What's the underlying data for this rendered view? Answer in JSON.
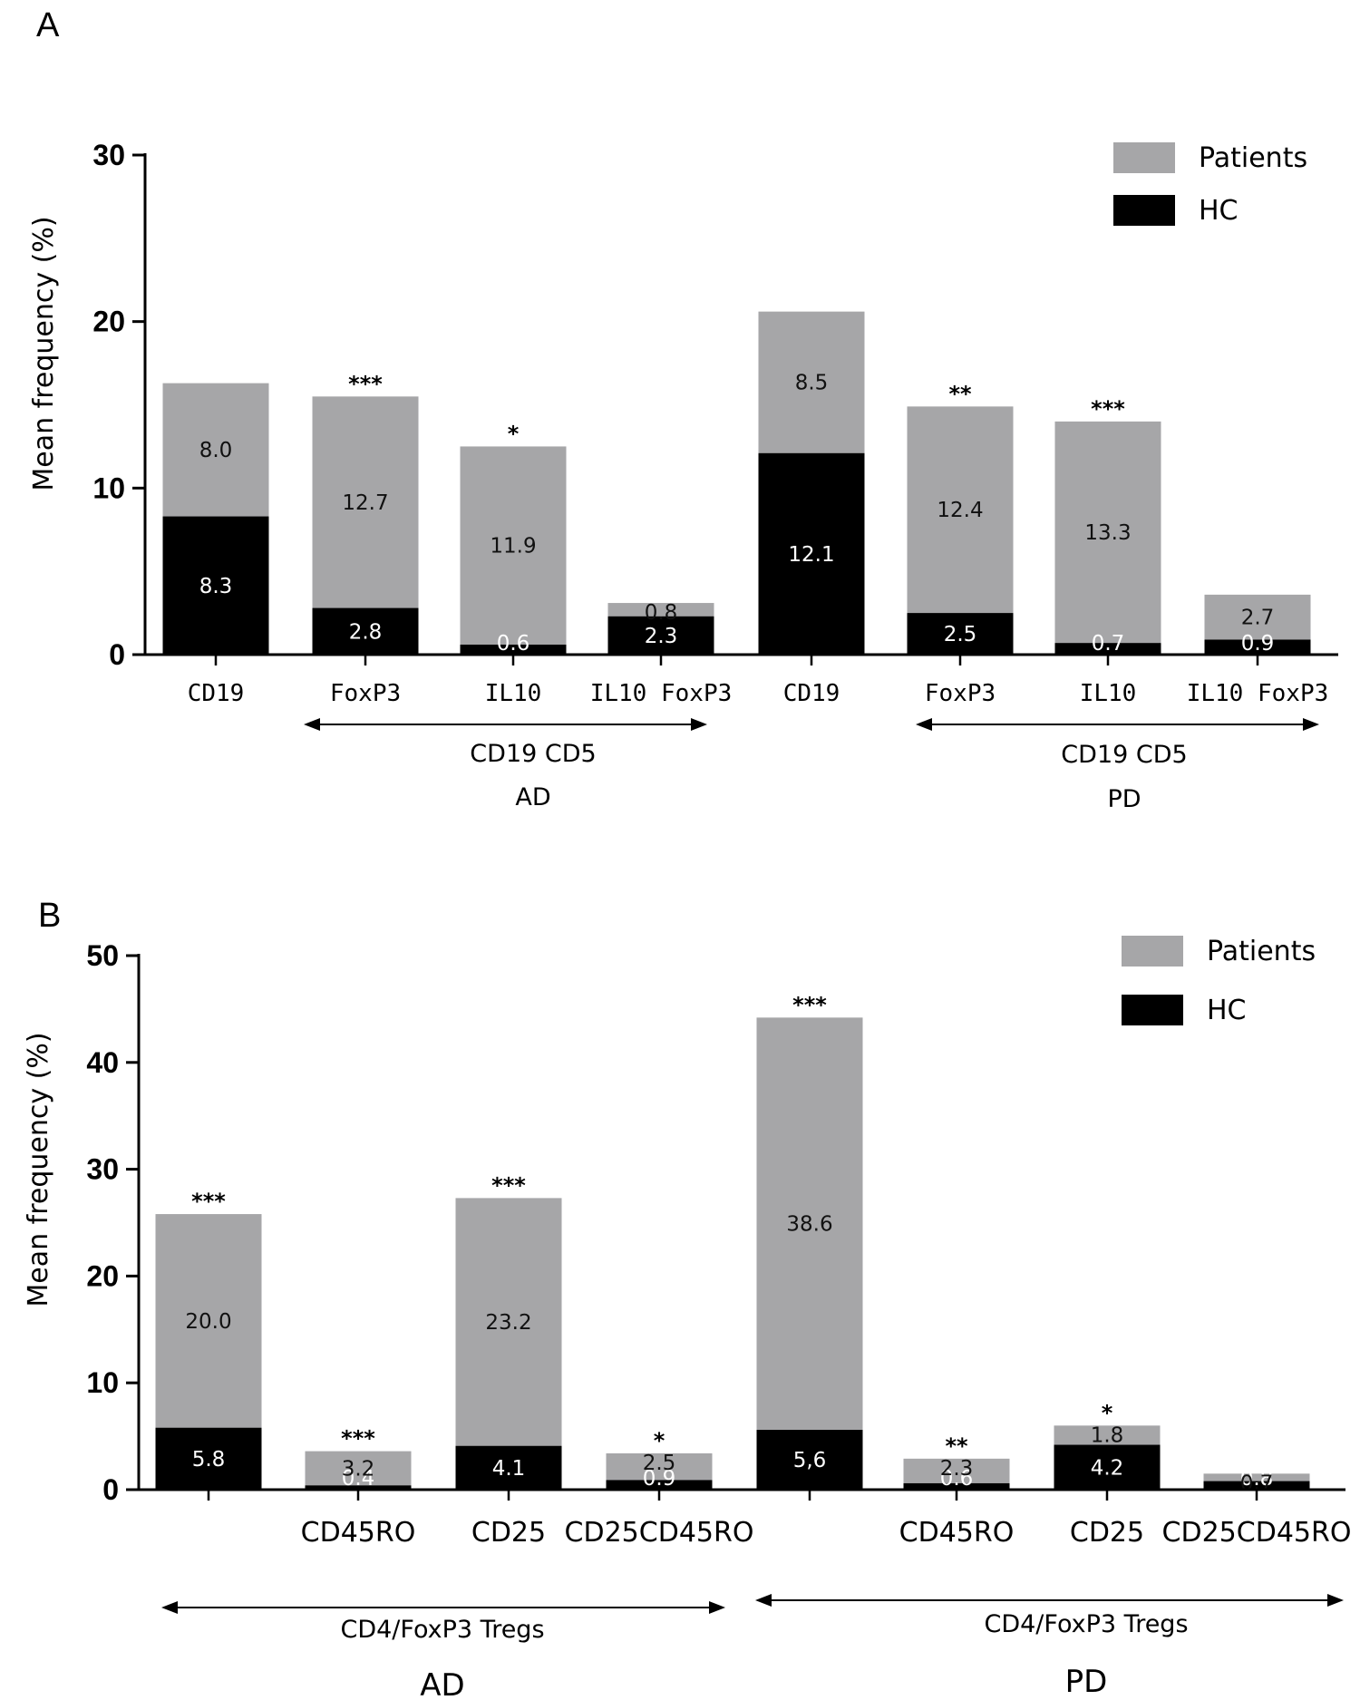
{
  "colors": {
    "patients": "#a6a6a8",
    "hc": "#000000"
  },
  "chart_data": [
    {
      "type": "bar",
      "stacked": true,
      "panel": "A",
      "ylabel": "Mean frequency (%)",
      "ylim": [
        0,
        30
      ],
      "yticks": [
        "0",
        "10",
        "20",
        "30"
      ],
      "legend": {
        "position": "top-right",
        "patients": "Patients",
        "hc": "HC"
      },
      "categories": [
        "CD19",
        "FoxP3",
        "IL10",
        "IL10 FoxP3",
        "CD19",
        "FoxP3",
        "IL10",
        "IL10 FoxP3"
      ],
      "series": [
        {
          "name": "HC",
          "values": [
            8.3,
            2.8,
            0.6,
            2.3,
            12.1,
            2.5,
            0.7,
            0.9
          ],
          "labels": [
            "8.3",
            "2.8",
            "0.6",
            "2.3",
            "12.1",
            "2.5",
            "0.7",
            "0.9"
          ]
        },
        {
          "name": "Patients",
          "values": [
            8.0,
            12.7,
            11.9,
            0.8,
            8.5,
            12.4,
            13.3,
            2.7
          ],
          "labels": [
            "8.0",
            "12.7",
            "11.9",
            "0.8",
            "8.5",
            "12.4",
            "13.3",
            "2.7"
          ]
        }
      ],
      "significance": [
        "",
        "***",
        "*",
        "",
        "",
        "**",
        "***",
        ""
      ],
      "groups": [
        {
          "sublabel": "CD19 CD5",
          "label": "AD"
        },
        {
          "sublabel": "CD19 CD5",
          "label": "PD"
        }
      ]
    },
    {
      "type": "bar",
      "stacked": true,
      "panel": "B",
      "ylabel": "Mean frequency (%)",
      "ylim": [
        0,
        50
      ],
      "yticks": [
        "0",
        "10",
        "20",
        "30",
        "40",
        "50"
      ],
      "legend": {
        "position": "top-right",
        "patients": "Patients",
        "hc": "HC"
      },
      "categories": [
        "",
        "CD45RO",
        "CD25",
        "CD25CD45RO",
        "",
        "CD45RO",
        "CD25",
        "CD25CD45RO"
      ],
      "series": [
        {
          "name": "HC",
          "values": [
            5.8,
            0.4,
            4.1,
            0.9,
            5.6,
            0.6,
            4.2,
            0.8
          ],
          "labels": [
            "5.8",
            "0.4",
            "4.1",
            "0.9",
            "5,6",
            "0.6",
            "4.2",
            "0.8"
          ]
        },
        {
          "name": "Patients",
          "values": [
            20.0,
            3.2,
            23.2,
            2.5,
            38.6,
            2.3,
            1.8,
            0.7
          ],
          "labels": [
            "20.0",
            "3.2",
            "23.2",
            "2.5",
            "38.6",
            "2.3",
            "1.8",
            "0.7"
          ]
        }
      ],
      "significance": [
        "***",
        "***",
        "***",
        "*",
        "***",
        "**",
        "*",
        ""
      ],
      "groups": [
        {
          "sublabel": "CD4/FoxP3 Tregs",
          "label": "AD"
        },
        {
          "sublabel": "CD4/FoxP3 Tregs",
          "label": "PD"
        }
      ]
    }
  ]
}
